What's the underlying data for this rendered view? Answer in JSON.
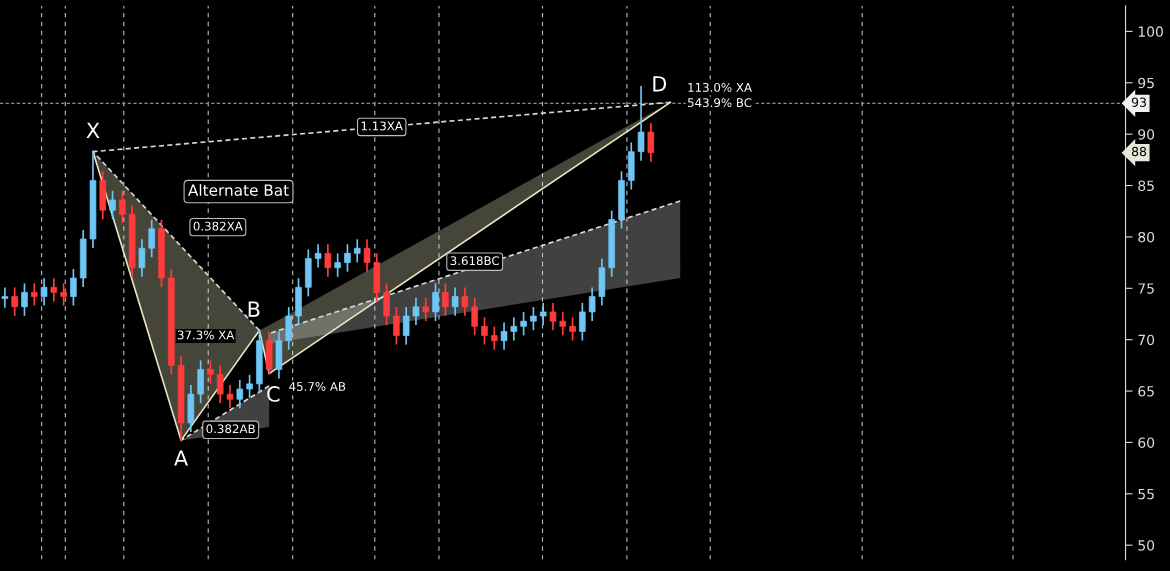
{
  "chart_data": {
    "type": "candlestick",
    "categories": [
      null,
      null,
      null,
      null,
      null,
      null,
      null,
      null,
      null,
      null,
      null,
      null,
      null,
      null,
      null,
      null,
      null,
      null,
      null,
      null,
      null,
      null,
      null,
      null,
      null,
      null,
      null,
      null,
      null,
      null,
      null,
      null,
      null,
      null,
      null,
      null,
      null,
      null,
      null,
      null,
      null,
      null,
      null,
      null,
      null,
      null,
      null,
      null,
      null,
      null,
      null,
      null,
      null,
      null,
      null,
      null,
      null,
      null,
      null,
      null,
      null,
      null,
      null,
      null,
      null,
      null,
      null,
      null,
      null,
      null,
      null,
      null,
      null,
      null,
      null,
      null,
      null,
      null,
      null,
      null,
      null,
      null,
      null,
      null,
      null,
      null,
      null,
      null,
      null,
      null,
      null,
      null,
      null,
      null,
      null,
      null,
      null,
      null,
      null,
      null,
      null,
      null,
      null,
      null,
      null,
      null,
      null,
      null,
      null,
      null,
      null,
      null,
      null,
      null,
      null
    ],
    "ohlc": [
      [
        74.0,
        75.0,
        73.2,
        74.2
      ],
      [
        74.2,
        75.0,
        72.4,
        73.2
      ],
      [
        73.2,
        75.4,
        72.4,
        74.6
      ],
      [
        74.6,
        75.4,
        73.4,
        74.2
      ],
      [
        74.2,
        75.9,
        73.4,
        75.1
      ],
      [
        75.1,
        75.9,
        73.8,
        74.6
      ],
      [
        74.6,
        75.4,
        73.4,
        74.2
      ],
      [
        74.2,
        76.8,
        73.4,
        76.0
      ],
      [
        76.0,
        80.6,
        75.2,
        79.8
      ],
      [
        79.8,
        88.3,
        79.0,
        85.5
      ],
      [
        85.5,
        86.3,
        81.8,
        82.6
      ],
      [
        82.6,
        84.4,
        81.8,
        83.6
      ],
      [
        83.6,
        84.4,
        81.4,
        82.2
      ],
      [
        82.2,
        83.0,
        76.2,
        77.0
      ],
      [
        77.0,
        79.7,
        76.2,
        78.9
      ],
      [
        78.9,
        81.6,
        78.1,
        80.8
      ],
      [
        80.8,
        81.6,
        75.2,
        76.0
      ],
      [
        76.0,
        76.8,
        66.7,
        67.5
      ],
      [
        67.5,
        68.3,
        60.2,
        61.9
      ],
      [
        61.9,
        65.5,
        61.1,
        64.7
      ],
      [
        64.7,
        67.9,
        63.9,
        67.1
      ],
      [
        67.1,
        67.9,
        65.8,
        66.6
      ],
      [
        66.6,
        67.4,
        63.9,
        64.7
      ],
      [
        64.7,
        65.5,
        63.4,
        64.2
      ],
      [
        64.2,
        66.0,
        63.4,
        65.2
      ],
      [
        65.2,
        66.5,
        64.4,
        65.7
      ],
      [
        65.7,
        70.9,
        64.9,
        69.9
      ],
      [
        69.9,
        70.7,
        66.7,
        67.1
      ],
      [
        67.1,
        70.7,
        66.3,
        69.9
      ],
      [
        69.9,
        73.1,
        69.1,
        72.3
      ],
      [
        72.3,
        75.9,
        71.5,
        75.1
      ],
      [
        75.1,
        78.7,
        74.3,
        77.9
      ],
      [
        77.9,
        79.2,
        77.1,
        78.4
      ],
      [
        78.4,
        79.2,
        76.2,
        77.0
      ],
      [
        77.0,
        78.3,
        76.2,
        77.5
      ],
      [
        77.5,
        79.2,
        76.7,
        78.4
      ],
      [
        78.4,
        79.7,
        77.6,
        78.9
      ],
      [
        78.9,
        79.7,
        76.7,
        77.5
      ],
      [
        77.5,
        78.3,
        73.8,
        74.6
      ],
      [
        74.6,
        75.4,
        71.5,
        72.3
      ],
      [
        72.3,
        73.1,
        69.6,
        70.4
      ],
      [
        70.4,
        73.1,
        69.6,
        72.3
      ],
      [
        72.3,
        74.0,
        71.5,
        73.2
      ],
      [
        73.2,
        74.0,
        71.9,
        72.7
      ],
      [
        72.7,
        75.4,
        71.9,
        74.6
      ],
      [
        74.6,
        75.4,
        72.4,
        73.2
      ],
      [
        73.2,
        75.0,
        72.4,
        74.2
      ],
      [
        74.2,
        75.0,
        72.4,
        73.2
      ],
      [
        73.2,
        74.0,
        70.5,
        71.3
      ],
      [
        71.3,
        72.1,
        69.6,
        70.4
      ],
      [
        70.4,
        71.2,
        69.1,
        69.9
      ],
      [
        69.9,
        71.6,
        69.1,
        70.8
      ],
      [
        70.8,
        72.1,
        70.0,
        71.3
      ],
      [
        71.3,
        72.6,
        70.5,
        71.8
      ],
      [
        71.8,
        73.1,
        71.0,
        72.3
      ],
      [
        72.3,
        73.5,
        71.5,
        72.7
      ],
      [
        72.7,
        73.5,
        71.0,
        71.8
      ],
      [
        71.8,
        72.6,
        70.5,
        71.3
      ],
      [
        71.3,
        72.1,
        70.0,
        70.8
      ],
      [
        70.8,
        73.5,
        70.0,
        72.7
      ],
      [
        72.7,
        75.0,
        71.9,
        74.2
      ],
      [
        74.2,
        77.8,
        73.4,
        77.0
      ],
      [
        77.0,
        82.5,
        76.2,
        81.7
      ],
      [
        81.7,
        86.3,
        80.9,
        85.5
      ],
      [
        85.5,
        89.1,
        84.7,
        88.3
      ],
      [
        88.3,
        94.6,
        87.5,
        90.2
      ],
      [
        90.2,
        91.0,
        87.4,
        88.2
      ],
      null,
      null,
      null,
      null,
      null,
      null,
      null,
      null,
      null,
      null,
      null,
      null,
      null,
      null,
      null,
      null,
      null,
      null,
      null,
      null,
      null,
      null,
      null,
      null,
      null,
      null,
      null,
      null,
      null,
      null,
      null,
      null,
      null,
      null,
      null,
      null,
      null,
      null,
      null,
      null,
      null,
      null,
      null,
      null,
      null,
      null,
      null,
      null
    ],
    "colors": [
      "#6ec6f5",
      "#ff3b3b",
      "#6ec6f5",
      "#ff3b3b",
      "#6ec6f5",
      "#ff3b3b",
      "#ff3b3b",
      "#6ec6f5",
      "#6ec6f5",
      "#6ec6f5",
      "#ff3b3b",
      "#6ec6f5",
      "#ff3b3b",
      "#ff3b3b",
      "#6ec6f5",
      "#6ec6f5",
      "#ff3b3b",
      "#ff3b3b",
      "#ff3b3b",
      "#6ec6f5",
      "#6ec6f5",
      "#ff3b3b",
      "#ff3b3b",
      "#ff3b3b",
      "#6ec6f5",
      "#6ec6f5",
      "#6ec6f5",
      "#ff3b3b",
      "#6ec6f5",
      "#6ec6f5",
      "#6ec6f5",
      "#6ec6f5",
      "#6ec6f5",
      "#ff3b3b",
      "#6ec6f5",
      "#6ec6f5",
      "#6ec6f5",
      "#ff3b3b",
      "#ff3b3b",
      "#ff3b3b",
      "#ff3b3b",
      "#6ec6f5",
      "#6ec6f5",
      "#ff3b3b",
      "#6ec6f5",
      "#ff3b3b",
      "#6ec6f5",
      "#ff3b3b",
      "#ff3b3b",
      "#ff3b3b",
      "#ff3b3b",
      "#6ec6f5",
      "#6ec6f5",
      "#6ec6f5",
      "#6ec6f5",
      "#6ec6f5",
      "#ff3b3b",
      "#ff3b3b",
      "#ff3b3b",
      "#6ec6f5",
      "#6ec6f5",
      "#6ec6f5",
      "#6ec6f5",
      "#6ec6f5",
      "#6ec6f5",
      "#6ec6f5",
      "#ff3b3b",
      null,
      null,
      null,
      null,
      null,
      null,
      null,
      null,
      null,
      null,
      null,
      null,
      null,
      null,
      null,
      null,
      null,
      null,
      null,
      null,
      null,
      null,
      null,
      null,
      null,
      null,
      null,
      null,
      null,
      null,
      null,
      null,
      null,
      null,
      null,
      null,
      null,
      null,
      null,
      null,
      null,
      null,
      null,
      null,
      null,
      null,
      null,
      null
    ],
    "series": [
      {
        "type": "line",
        "color": "#e8e4c0",
        "line_style": "solid",
        "values": [
          null,
          null,
          null,
          null,
          null,
          null,
          null,
          null,
          null,
          88.3,
          null,
          null,
          null,
          null,
          null,
          null,
          null,
          null,
          60.2,
          null,
          null,
          null,
          null,
          null,
          null,
          null,
          70.9,
          null,
          null,
          null,
          null,
          null,
          null,
          null,
          null,
          null,
          null,
          null,
          null,
          null,
          null,
          null,
          null,
          null,
          null,
          null,
          null,
          null,
          null,
          null,
          null,
          null,
          null,
          null,
          null,
          null,
          null,
          null,
          null,
          null,
          null,
          null,
          null,
          null,
          null,
          null,
          null,
          null,
          null,
          null,
          null,
          null,
          null,
          null,
          null,
          null,
          null,
          null,
          null,
          null,
          null,
          null,
          null,
          null,
          null,
          null,
          null,
          null,
          null,
          null,
          null,
          null,
          null,
          null,
          null,
          null,
          null,
          null,
          null,
          null,
          null,
          null,
          null,
          null,
          null,
          null,
          null,
          null,
          null,
          null,
          null,
          null,
          null,
          null,
          null
        ],
        "lower": [
          null,
          null,
          null,
          null,
          null,
          null,
          null,
          null,
          null,
          88.3,
          null,
          null,
          null,
          null,
          null,
          null,
          null,
          null,
          60.2,
          null,
          null,
          null,
          null,
          null,
          null,
          null,
          70.9,
          null,
          null,
          null,
          null,
          null,
          null,
          null,
          null,
          null,
          null,
          null,
          null,
          null,
          null,
          null,
          null,
          null,
          null,
          null,
          null,
          null,
          null,
          null,
          null,
          null,
          null,
          null,
          null,
          null,
          null,
          null,
          null,
          null,
          null,
          null,
          null,
          null,
          null,
          null,
          null,
          null,
          null,
          null,
          null,
          null,
          null,
          null,
          null,
          null,
          null,
          null,
          null,
          null,
          null,
          null,
          null,
          null,
          null,
          null,
          null,
          null,
          null,
          null,
          null,
          null,
          null,
          null,
          null,
          null,
          null,
          null,
          null,
          null,
          null,
          null,
          null,
          null,
          null,
          null,
          null,
          null,
          null,
          null,
          null,
          null,
          null,
          null,
          null
        ],
        "upper": [
          null,
          null,
          null,
          null,
          null,
          null,
          null,
          null,
          null,
          88.3,
          null,
          null,
          null,
          null,
          null,
          null,
          null,
          null,
          79.1,
          null,
          null,
          null,
          null,
          null,
          null,
          null,
          70.9,
          null,
          null,
          null,
          null,
          null,
          null,
          null,
          null,
          null,
          null,
          null,
          null,
          null,
          null,
          null,
          null,
          null,
          null,
          null,
          null,
          null,
          null,
          null,
          null,
          null,
          null,
          null,
          null,
          null,
          null,
          null,
          null,
          null,
          null,
          null,
          null,
          null,
          null,
          null,
          null,
          null,
          null,
          null,
          null,
          null,
          null,
          null,
          null,
          null,
          null,
          null,
          null,
          null,
          null,
          null,
          null,
          null,
          null,
          null,
          null,
          null,
          null,
          null,
          null,
          null,
          null,
          null,
          null,
          null,
          null,
          null,
          null,
          null,
          null,
          null,
          null,
          null,
          null,
          null,
          null,
          null,
          null,
          null,
          null,
          null,
          null,
          null,
          null
        ]
      },
      {
        "type": "line",
        "color": "#e8e4c0",
        "line_style": "solid",
        "values": [
          null,
          null,
          null,
          null,
          null,
          null,
          null,
          null,
          null,
          null,
          null,
          null,
          null,
          null,
          null,
          null,
          null,
          null,
          null,
          null,
          null,
          null,
          null,
          null,
          null,
          null,
          70.9,
          66.7,
          null,
          null,
          null,
          null,
          null,
          null,
          null,
          null,
          null,
          null,
          null,
          null,
          null,
          null,
          null,
          null,
          null,
          null,
          null,
          null,
          null,
          null,
          null,
          null,
          null,
          null,
          null,
          null,
          null,
          null,
          null,
          null,
          null,
          null,
          null,
          null,
          null,
          null,
          null,
          null,
          93.1,
          null,
          null,
          null,
          null,
          null,
          null,
          null,
          null,
          null,
          null,
          null,
          null,
          null,
          null,
          null,
          null,
          null,
          null,
          null,
          null,
          null,
          null,
          null,
          null,
          null,
          null,
          null,
          null,
          null,
          null,
          null,
          null,
          null,
          null,
          null,
          null,
          null,
          null,
          null,
          null,
          null,
          null,
          null,
          null,
          null,
          null
        ],
        "lower": [
          null,
          null,
          null,
          null,
          null,
          null,
          null,
          null,
          null,
          null,
          null,
          null,
          null,
          null,
          null,
          null,
          null,
          null,
          null,
          null,
          null,
          null,
          null,
          null,
          null,
          null,
          70.9,
          66.7,
          null,
          null,
          null,
          null,
          null,
          null,
          null,
          null,
          null,
          null,
          null,
          null,
          null,
          null,
          null,
          null,
          null,
          null,
          null,
          null,
          null,
          null,
          null,
          null,
          null,
          null,
          null,
          null,
          null,
          null,
          null,
          null,
          null,
          null,
          null,
          null,
          null,
          null,
          null,
          null,
          93.1,
          null,
          null,
          null,
          null,
          null,
          null,
          null,
          null,
          null,
          null,
          null,
          null,
          null,
          null,
          null,
          null,
          null,
          null,
          null,
          null,
          null,
          null,
          null,
          null,
          null,
          null,
          null,
          null,
          null,
          null,
          null,
          null,
          null,
          null,
          null,
          null,
          null,
          null,
          null,
          null,
          null,
          null,
          null,
          null,
          null,
          null
        ],
        "upper": [
          null,
          null,
          null,
          null,
          null,
          null,
          null,
          null,
          null,
          null,
          null,
          null,
          null,
          null,
          null,
          null,
          null,
          null,
          null,
          null,
          null,
          null,
          null,
          null,
          null,
          null,
          70.9,
          71.4,
          null,
          null,
          null,
          null,
          null,
          null,
          null,
          null,
          null,
          null,
          null,
          null,
          null,
          null,
          null,
          null,
          null,
          null,
          null,
          null,
          null,
          null,
          null,
          null,
          null,
          null,
          null,
          null,
          null,
          null,
          null,
          null,
          null,
          null,
          null,
          null,
          null,
          null,
          null,
          null,
          93.1,
          null,
          null,
          null,
          null,
          null,
          null,
          null,
          null,
          null,
          null,
          null,
          null,
          null,
          null,
          null,
          null,
          null,
          null,
          null,
          null,
          null,
          null,
          null,
          null,
          null,
          null,
          null,
          null,
          null,
          null,
          null,
          null,
          null,
          null,
          null,
          null,
          null,
          null,
          null,
          null,
          null,
          null,
          null,
          null,
          null,
          null
        ]
      },
      {
        "type": "line",
        "color": "#d8d8d8",
        "line_style": "dashed",
        "values": [
          null,
          null,
          null,
          null,
          null,
          null,
          null,
          null,
          null,
          null,
          null,
          null,
          null,
          null,
          null,
          null,
          null,
          null,
          60.2,
          null,
          null,
          null,
          null,
          null,
          null,
          null,
          null,
          65.5,
          null,
          null,
          null,
          null,
          null,
          null,
          null,
          null,
          null,
          null,
          null,
          null,
          null,
          null,
          null,
          null,
          null,
          null,
          null,
          null,
          null,
          null,
          null,
          null,
          null,
          null,
          null,
          null,
          null,
          null,
          null,
          null,
          null,
          null,
          null,
          null,
          null,
          null,
          null,
          null,
          null,
          null,
          null,
          null,
          null,
          null,
          null,
          null,
          null,
          null,
          null,
          null,
          null,
          null,
          null,
          null,
          null,
          null,
          null,
          null,
          null,
          null,
          null,
          null,
          null,
          null,
          null,
          null,
          null,
          null,
          null,
          null,
          null,
          null,
          null,
          null,
          null,
          null,
          null,
          null,
          null,
          null,
          null,
          null,
          null,
          null,
          null
        ],
        "lower": [
          null,
          null,
          null,
          null,
          null,
          null,
          null,
          null,
          null,
          null,
          null,
          null,
          null,
          null,
          null,
          null,
          null,
          null,
          60.2,
          null,
          null,
          null,
          null,
          null,
          null,
          null,
          null,
          61.5,
          null,
          null,
          null,
          null,
          null,
          null,
          null,
          null,
          null,
          null,
          null,
          null,
          null,
          null,
          null,
          null,
          null,
          null,
          null,
          null,
          null,
          null,
          null,
          null,
          null,
          null,
          null,
          null,
          null,
          null,
          null,
          null,
          null,
          null,
          null,
          null,
          null,
          null,
          null,
          null,
          null,
          null,
          null,
          null,
          null,
          null,
          null,
          null,
          null,
          null,
          null,
          null,
          null,
          null,
          null,
          null,
          null,
          null,
          null,
          null,
          null,
          null,
          null,
          null,
          null,
          null,
          null,
          null,
          null,
          null,
          null,
          null,
          null,
          null,
          null,
          null,
          null,
          null,
          null,
          null,
          null,
          null,
          null,
          null,
          null,
          null,
          null
        ],
        "upper": [
          null,
          null,
          null,
          null,
          null,
          null,
          null,
          null,
          null,
          null,
          null,
          null,
          null,
          null,
          null,
          null,
          null,
          null,
          60.2,
          null,
          null,
          null,
          null,
          null,
          null,
          null,
          null,
          65.5,
          null,
          null,
          null,
          null,
          null,
          null,
          null,
          null,
          null,
          null,
          null,
          null,
          null,
          null,
          null,
          null,
          null,
          null,
          null,
          null,
          null,
          null,
          null,
          null,
          null,
          null,
          null,
          null,
          null,
          null,
          null,
          null,
          null,
          null,
          null,
          null,
          null,
          null,
          null,
          null,
          null,
          null,
          null,
          null,
          null,
          null,
          null,
          null,
          null,
          null,
          null,
          null,
          null,
          null,
          null,
          null,
          null,
          null,
          null,
          null,
          null,
          null,
          null,
          null,
          null,
          null,
          null,
          null,
          null,
          null,
          null,
          null,
          null,
          null,
          null,
          null,
          null,
          null,
          null,
          null,
          null,
          null,
          null,
          null,
          null,
          null,
          null
        ]
      },
      {
        "type": "line",
        "color": "#d8d8d8",
        "line_style": "dashed",
        "values": [
          null,
          null,
          null,
          null,
          null,
          null,
          null,
          null,
          null,
          null,
          null,
          null,
          null,
          null,
          null,
          null,
          null,
          null,
          null,
          null,
          null,
          null,
          null,
          null,
          null,
          null,
          null,
          70.6,
          null,
          null,
          null,
          null,
          null,
          null,
          null,
          null,
          null,
          null,
          null,
          null,
          null,
          null,
          null,
          null,
          null,
          null,
          null,
          null,
          null,
          null,
          null,
          null,
          null,
          null,
          null,
          null,
          null,
          null,
          null,
          null,
          null,
          null,
          null,
          null,
          null,
          null,
          null,
          null,
          null,
          83.5,
          null,
          null,
          null,
          null,
          null,
          null,
          null,
          null,
          null,
          null,
          null,
          null,
          null,
          null,
          null,
          null,
          null,
          null,
          null,
          null,
          null,
          null,
          null,
          null,
          null,
          null,
          null,
          null,
          null,
          null,
          null,
          null,
          null,
          null,
          null,
          null,
          null,
          null,
          null,
          null,
          null,
          null,
          null,
          null,
          null
        ],
        "lower": [
          null,
          null,
          null,
          null,
          null,
          null,
          null,
          null,
          null,
          null,
          null,
          null,
          null,
          null,
          null,
          null,
          null,
          null,
          null,
          null,
          null,
          null,
          null,
          null,
          null,
          null,
          null,
          69.6,
          null,
          null,
          null,
          null,
          null,
          null,
          null,
          null,
          null,
          null,
          null,
          null,
          null,
          null,
          null,
          null,
          null,
          null,
          null,
          null,
          null,
          null,
          null,
          null,
          null,
          null,
          null,
          null,
          null,
          null,
          null,
          null,
          null,
          null,
          null,
          null,
          null,
          null,
          null,
          null,
          null,
          76.0,
          null,
          null,
          null,
          null,
          null,
          null,
          null,
          null,
          null,
          null,
          null,
          null,
          null,
          null,
          null,
          null,
          null,
          null,
          null,
          null,
          null,
          null,
          null,
          null,
          null,
          null,
          null,
          null,
          null,
          null,
          null,
          null,
          null,
          null,
          null,
          null,
          null,
          null,
          null,
          null,
          null,
          null,
          null,
          null,
          null
        ],
        "upper": [
          null,
          null,
          null,
          null,
          null,
          null,
          null,
          null,
          null,
          null,
          null,
          null,
          null,
          null,
          null,
          null,
          null,
          null,
          null,
          null,
          null,
          null,
          null,
          null,
          null,
          null,
          null,
          70.6,
          null,
          null,
          null,
          null,
          null,
          null,
          null,
          null,
          null,
          null,
          null,
          null,
          null,
          null,
          null,
          null,
          null,
          null,
          null,
          null,
          null,
          null,
          null,
          null,
          null,
          null,
          null,
          null,
          null,
          null,
          null,
          null,
          null,
          null,
          null,
          null,
          null,
          null,
          null,
          null,
          null,
          83.5,
          null,
          null,
          null,
          null,
          null,
          null,
          null,
          null,
          null,
          null,
          null,
          null,
          null,
          null,
          null,
          null,
          null,
          null,
          null,
          null,
          null,
          null,
          null,
          null,
          null,
          null,
          null,
          null,
          null,
          null,
          null,
          null,
          null,
          null,
          null,
          null,
          null,
          null,
          null,
          null,
          null,
          null,
          null,
          null,
          null
        ]
      },
      {
        "type": "line",
        "color": "#d8d8d8",
        "line_style": "dashed",
        "values": [
          null,
          null,
          null,
          null,
          null,
          null,
          null,
          null,
          null,
          88.3,
          null,
          null,
          null,
          null,
          null,
          null,
          null,
          null,
          null,
          null,
          null,
          null,
          null,
          null,
          null,
          null,
          70.9,
          null,
          null,
          null,
          null,
          null,
          null,
          null,
          null,
          null,
          null,
          null,
          null,
          null,
          null,
          null,
          null,
          null,
          null,
          null,
          null,
          null,
          null,
          null,
          null,
          null,
          null,
          null,
          null,
          null,
          null,
          null,
          null,
          null,
          null,
          null,
          null,
          null,
          null,
          null,
          null,
          null,
          null,
          null,
          null,
          null,
          null,
          null,
          null,
          null,
          null,
          null,
          null,
          null,
          null,
          null,
          null,
          null,
          null,
          null,
          null,
          null,
          null,
          null,
          null,
          null,
          null,
          null,
          null,
          null,
          null,
          null,
          null,
          null,
          null,
          null,
          null,
          null,
          null,
          null,
          null,
          null,
          null,
          null,
          null,
          null,
          null,
          null,
          null
        ]
      },
      {
        "type": "line",
        "color": "#d8d8d8",
        "line_style": "dashed",
        "values": [
          null,
          null,
          null,
          null,
          null,
          null,
          null,
          null,
          null,
          88.3,
          null,
          null,
          null,
          null,
          null,
          null,
          null,
          null,
          null,
          null,
          null,
          null,
          null,
          null,
          null,
          null,
          null,
          null,
          null,
          null,
          null,
          null,
          null,
          null,
          null,
          null,
          null,
          null,
          null,
          null,
          null,
          null,
          null,
          null,
          null,
          null,
          null,
          null,
          null,
          null,
          null,
          null,
          null,
          null,
          null,
          null,
          null,
          null,
          null,
          null,
          null,
          null,
          null,
          null,
          null,
          null,
          null,
          null,
          93.1,
          null,
          null,
          null,
          null,
          null,
          null,
          null,
          null,
          null,
          null,
          null,
          null,
          null,
          null,
          null,
          null,
          null,
          null,
          null,
          null,
          null,
          null,
          null,
          null,
          null,
          null,
          null,
          null,
          null,
          null,
          null,
          null,
          null,
          null,
          null,
          null,
          null,
          null,
          null,
          null,
          null,
          null,
          null,
          null,
          null,
          null
        ]
      }
    ],
    "ylim": [
      48.6,
      102.5
    ],
    "yticks": [
      50,
      55,
      60,
      65,
      70,
      75,
      80,
      85,
      90,
      95,
      100
    ],
    "tick_labels": "y",
    "ref_lines": [
      {
        "axis": "y",
        "value": 93,
        "label": "93",
        "color": "#8a8a8a",
        "line_style": "dashed"
      }
    ],
    "annotations": [
      "X",
      "A",
      "B",
      "C",
      "D",
      "0.382XA",
      "1.13XA",
      "0.382AB",
      "3.618BC",
      "Alternate Bat",
      "37.3% XA",
      "45.7% AB",
      "113.0% XA",
      "543.9% BC",
      "88"
    ]
  }
}
